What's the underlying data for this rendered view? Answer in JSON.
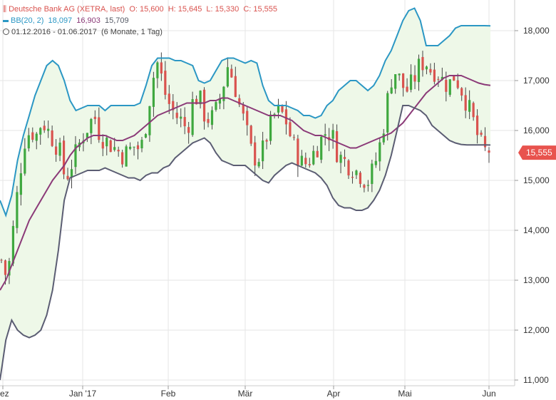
{
  "legend": {
    "instrument": "Deutsche Bank AG (XETRA, last)",
    "open_label": "O:",
    "open": "15,600",
    "high_label": "H:",
    "high": "15,645",
    "low_label": "L:",
    "low": "15,330",
    "close_label": "C:",
    "close": "15,555",
    "bb_label": "BB(20, 2)",
    "bb_upper": "18,097",
    "bb_middle": "16,903",
    "bb_lower": "15,709",
    "range": "01.12.2016 - 01.06.2017",
    "range_detail": "(6 Monate, 1 Tag)"
  },
  "colors": {
    "up": "#3fa83f",
    "down": "#d9534f",
    "upper_band": "#2b97c4",
    "middle_band": "#8b3a78",
    "lower_band": "#5b5d73",
    "band_fill": "#eef8e8",
    "last_price_tag": "#e8534e"
  },
  "chart_data": {
    "type": "candlestick",
    "y_axis": {
      "range": [
        10.9,
        18.5
      ],
      "ticks": [
        11,
        12,
        13,
        14,
        15,
        16,
        17,
        18
      ],
      "tick_labels": [
        "11,000",
        "12,000",
        "13,000",
        "14,000",
        "15,000",
        "16,000",
        "17,000",
        "18,000"
      ],
      "side": "right"
    },
    "x_axis": {
      "labels": [
        "ez",
        "Jan '17",
        "Feb",
        "Mär",
        "Apr",
        "Mai",
        "Jun"
      ]
    },
    "grid": true,
    "last_price_label": "15,555",
    "last_price": 15.555,
    "close_path": [
      13.4,
      13.0,
      14.0,
      15.0,
      15.8,
      16.0,
      15.9,
      16.2,
      16.0,
      15.8,
      15.6,
      15.0,
      15.3,
      15.6,
      15.9,
      16.1,
      16.3,
      15.9,
      15.8,
      15.7,
      15.6,
      15.5,
      15.6,
      15.7,
      15.6,
      16.2,
      17.0,
      17.4,
      16.8,
      16.5,
      16.3,
      16.2,
      16.0,
      16.6,
      16.7,
      16.3,
      16.2,
      16.4,
      16.8,
      17.3,
      17.0,
      16.5,
      16.1,
      15.6,
      15.4,
      15.6,
      16.0,
      16.3,
      16.4,
      16.2,
      15.8,
      15.5,
      15.3,
      15.4,
      15.6,
      15.8,
      16.0,
      15.9,
      15.5,
      15.4,
      15.3,
      15.2,
      15.1,
      14.95,
      15.2,
      15.6,
      16.2,
      17.0,
      17.2,
      16.9,
      16.8,
      17.0,
      17.3,
      17.4,
      17.2,
      17.2,
      17.0,
      16.9,
      17.1,
      16.9,
      16.6,
      16.3,
      15.9,
      15.6,
      15.555
    ],
    "series": [
      {
        "name": "BB(20, 2)",
        "values": [
          14.6,
          14.3,
          14.7,
          15.4,
          15.9,
          16.3,
          16.7,
          17.0,
          17.3,
          17.4,
          17.3,
          17.0,
          16.6,
          16.4,
          16.45,
          16.5,
          16.5,
          16.5,
          16.4,
          16.5,
          16.5,
          16.5,
          16.5,
          16.5,
          16.55,
          16.9,
          17.3,
          17.45,
          17.45,
          17.45,
          17.4,
          17.4,
          17.35,
          17.3,
          17.0,
          16.95,
          17.0,
          17.2,
          17.4,
          17.45,
          17.45,
          17.4,
          17.35,
          17.4,
          17.35,
          16.9,
          16.6,
          16.5,
          16.5,
          16.5,
          16.45,
          16.4,
          16.3,
          16.3,
          16.25,
          16.3,
          16.5,
          16.6,
          16.8,
          16.9,
          17.0,
          17.0,
          16.9,
          16.8,
          16.9,
          17.1,
          17.4,
          17.6,
          17.9,
          18.2,
          18.4,
          18.45,
          18.2,
          17.7,
          17.7,
          17.7,
          17.8,
          17.9,
          18.05,
          18.1,
          18.1,
          18.1,
          18.1,
          18.1,
          18.097
        ]
      },
      {
        "name": "",
        "values": [
          12.8,
          13.0,
          13.3,
          13.6,
          13.9,
          14.2,
          14.4,
          14.6,
          14.8,
          15.0,
          15.15,
          15.3,
          15.5,
          15.65,
          15.75,
          15.85,
          15.9,
          15.9,
          15.9,
          15.85,
          15.8,
          15.8,
          15.85,
          15.9,
          16.0,
          16.1,
          16.2,
          16.3,
          16.35,
          16.4,
          16.45,
          16.5,
          16.55,
          16.55,
          16.55,
          16.55,
          16.6,
          16.6,
          16.65,
          16.65,
          16.6,
          16.55,
          16.5,
          16.45,
          16.4,
          16.35,
          16.3,
          16.3,
          16.3,
          16.25,
          16.2,
          16.1,
          16.0,
          15.95,
          15.9,
          15.9,
          15.85,
          15.8,
          15.75,
          15.7,
          15.65,
          15.65,
          15.7,
          15.75,
          15.8,
          15.85,
          15.9,
          15.95,
          16.05,
          16.15,
          16.3,
          16.45,
          16.6,
          16.75,
          16.85,
          16.95,
          17.05,
          17.1,
          17.1,
          17.1,
          17.05,
          17.0,
          16.95,
          16.92,
          16.903
        ]
      },
      {
        "name": "",
        "values": [
          11.0,
          11.8,
          12.2,
          12.0,
          11.9,
          11.85,
          11.9,
          12.0,
          12.3,
          12.8,
          13.6,
          14.6,
          15.05,
          15.1,
          15.15,
          15.2,
          15.2,
          15.2,
          15.25,
          15.2,
          15.15,
          15.1,
          15.05,
          15.05,
          15.0,
          15.1,
          15.15,
          15.15,
          15.25,
          15.3,
          15.45,
          15.55,
          15.65,
          15.75,
          15.8,
          15.85,
          15.75,
          15.55,
          15.4,
          15.35,
          15.3,
          15.3,
          15.3,
          15.2,
          15.1,
          15.0,
          14.95,
          15.1,
          15.2,
          15.3,
          15.35,
          15.3,
          15.25,
          15.2,
          15.15,
          15.05,
          14.9,
          14.65,
          14.5,
          14.45,
          14.45,
          14.4,
          14.4,
          14.45,
          14.6,
          14.8,
          15.1,
          15.5,
          16.0,
          16.5,
          16.5,
          16.45,
          16.4,
          16.3,
          16.1,
          16.0,
          15.9,
          15.8,
          15.75,
          15.72,
          15.71,
          15.71,
          15.71,
          15.71,
          15.709
        ]
      }
    ]
  }
}
